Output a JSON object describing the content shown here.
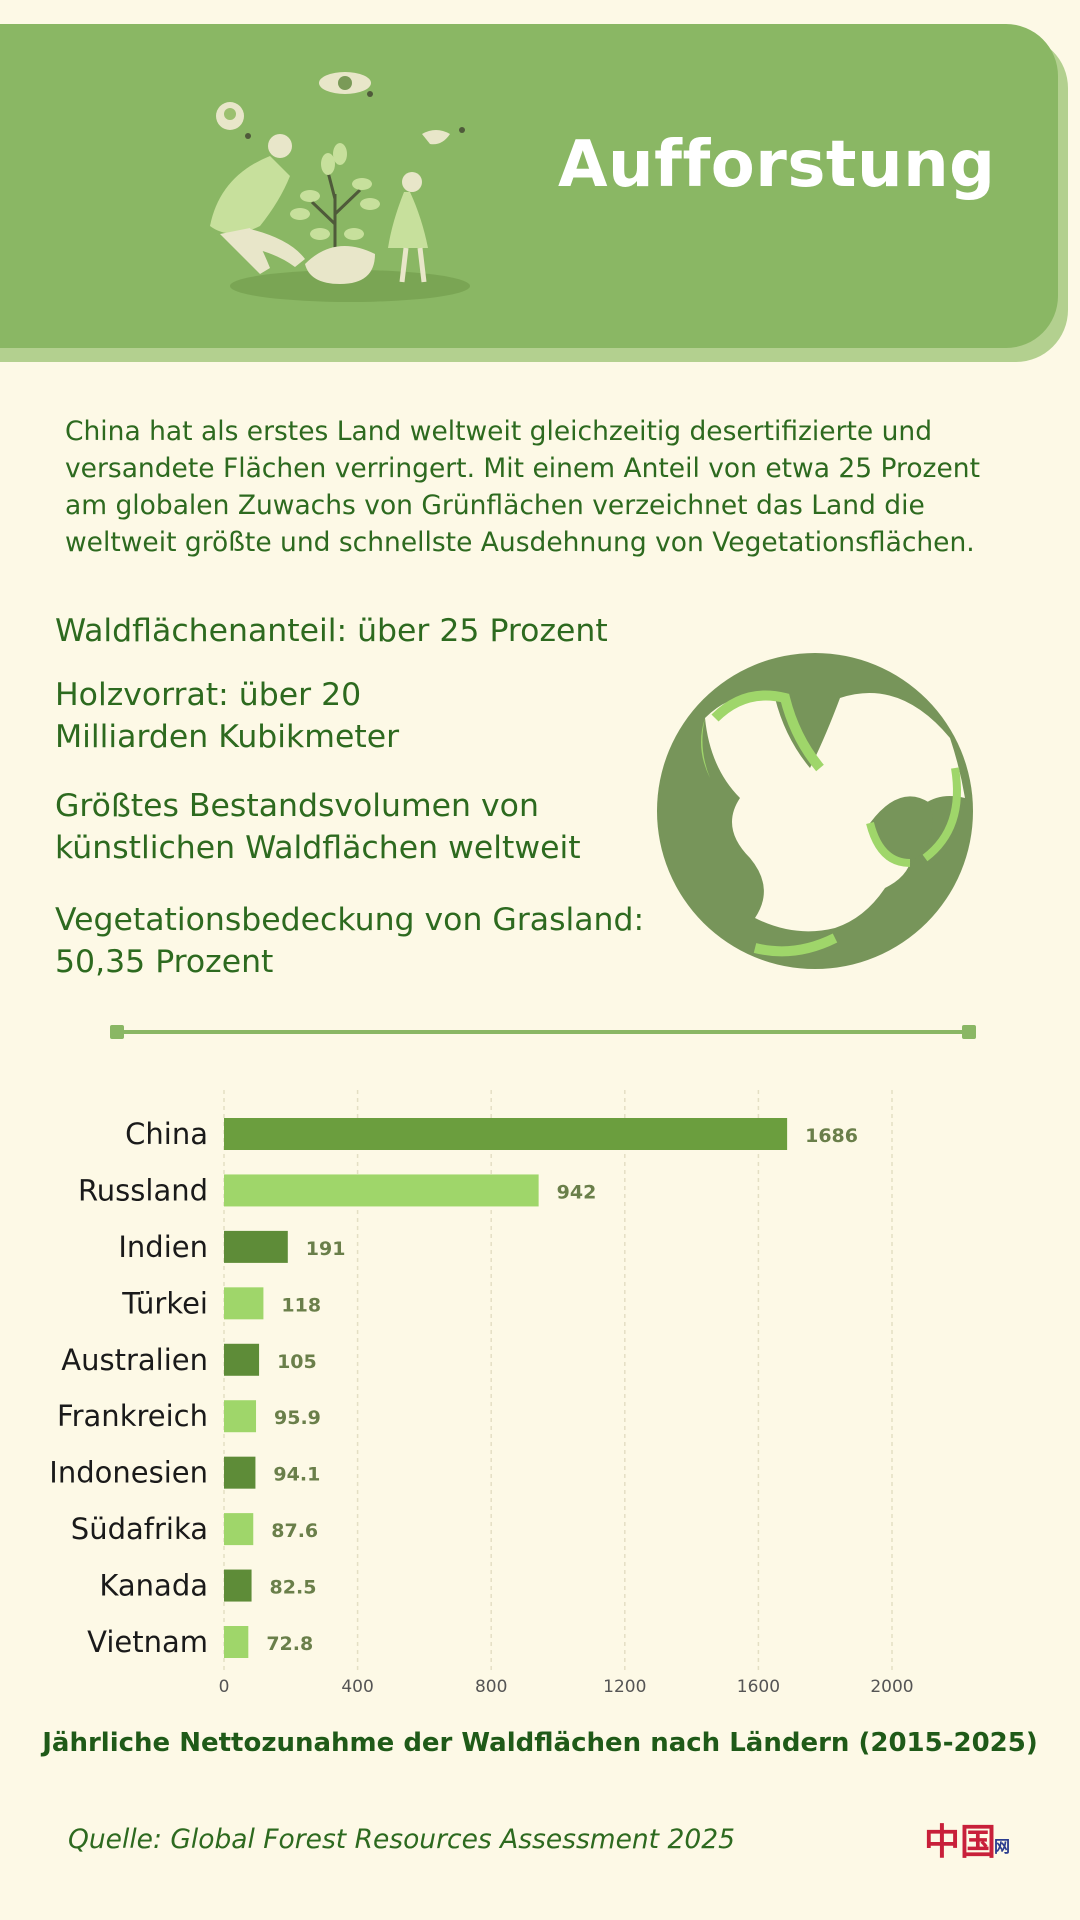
{
  "banner": {
    "title": "Aufforstung"
  },
  "intro": "China hat als erstes Land weltweit gleichzeitig desertifizierte und versandete Flächen verringert. Mit einem Anteil von etwa 25 Prozent am globalen Zuwachs von Grünflächen verzeichnet das Land die weltweit größte und schnellste Ausdehnung von Vegetationsflächen.",
  "facts": [
    "Waldflächenanteil: über 25 Prozent",
    "Holzvorrat: über 20 Milliarden Kubikmeter",
    "Größtes Bestandsvolumen von künstlichen Waldflächen weltweit",
    "Vegetationsbedeckung von Grasland: 50,35 Prozent"
  ],
  "chart_data": {
    "type": "bar",
    "orientation": "horizontal",
    "title": "Jährliche Nettozunahme der Waldflächen nach Ländern (2015-2025)",
    "categories": [
      "China",
      "Russland",
      "Indien",
      "Türkei",
      "Australien",
      "Frankreich",
      "Indonesien",
      "Südafrika",
      "Kanada",
      "Vietnam"
    ],
    "values": [
      1686,
      942,
      191,
      118,
      105,
      95.9,
      94.1,
      87.6,
      82.5,
      72.8
    ],
    "value_labels": [
      "1686",
      "942",
      "191",
      "118",
      "105",
      "95.9",
      "94.1",
      "87.6",
      "82.5",
      "72.8"
    ],
    "xlim": [
      0,
      2000
    ],
    "xticks": [
      "0",
      "400",
      "800",
      "1200",
      "1600",
      "2000"
    ],
    "grid": true,
    "colors": [
      "#6b9e3e",
      "#9fd66a",
      "#5e8c38",
      "#9fd66a",
      "#5e8c38",
      "#9fd66a",
      "#5e8c38",
      "#9fd66a",
      "#5e8c38",
      "#9fd66a"
    ]
  },
  "source": "Quelle: Global Forest Resources Assessment 2025",
  "logo": {
    "glyph": "中国",
    "suffix": "网"
  },
  "colors": {
    "banner": "#8ab764",
    "text": "#2d6a1f",
    "background": "#fdf9e6"
  }
}
